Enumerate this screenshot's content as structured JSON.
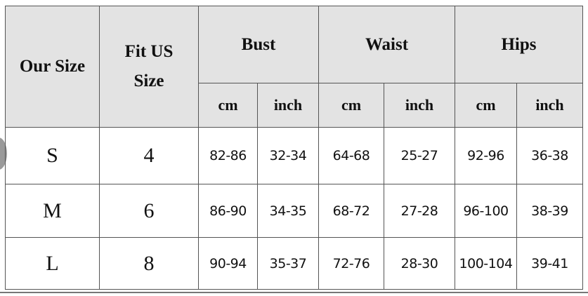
{
  "headers": {
    "our_size": "Our Size",
    "fit_us_line1": "Fit US",
    "fit_us_line2": "Size",
    "groups": [
      "Bust",
      "Waist",
      "Hips"
    ],
    "units": [
      "cm",
      "inch",
      "cm",
      "inch",
      "cm",
      "inch"
    ]
  },
  "rows": [
    {
      "size": "S",
      "us": "4",
      "values": [
        "82-86",
        "32-34",
        "64-68",
        "25-27",
        "92-96",
        "36-38"
      ]
    },
    {
      "size": "M",
      "us": "6",
      "values": [
        "86-90",
        "34-35",
        "68-72",
        "27-28",
        "96-100",
        "38-39"
      ]
    },
    {
      "size": "L",
      "us": "8",
      "values": [
        "90-94",
        "35-37",
        "72-76",
        "28-30",
        "100-104",
        "39-41"
      ]
    }
  ],
  "colors": {
    "header_bg": "#e3e3e3",
    "border": "#555555"
  }
}
